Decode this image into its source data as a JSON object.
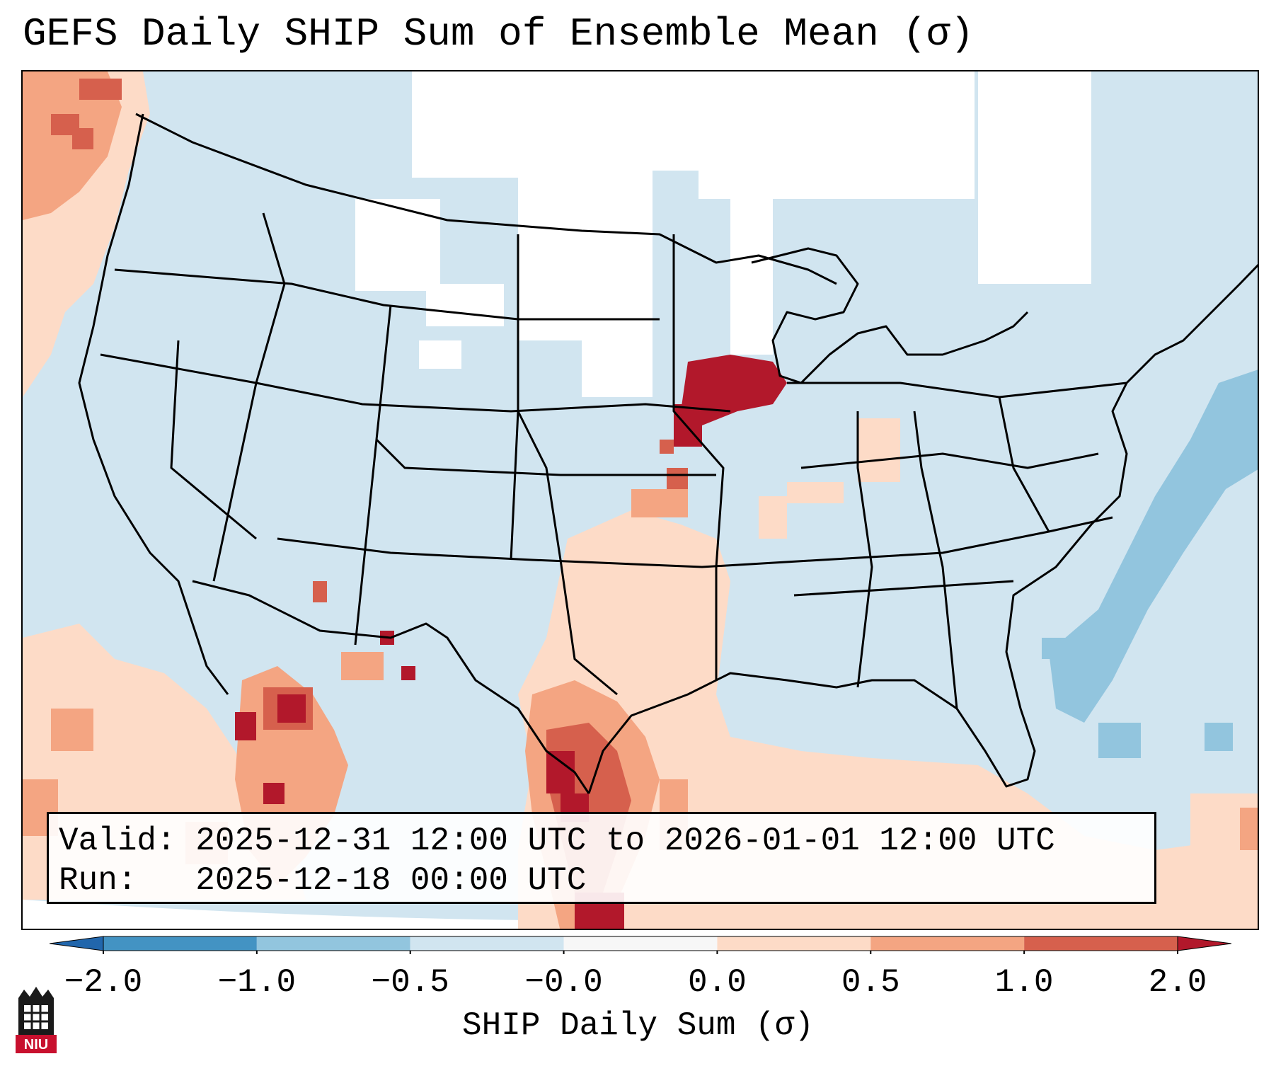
{
  "title": "GEFS Daily SHIP Sum of Ensemble Mean (σ)",
  "valid_label": "Valid:",
  "valid_value": "2025-12-31 12:00 UTC to 2026-01-01 12:00 UTC",
  "run_label": "Run:",
  "run_value": "2025-12-18 00:00 UTC",
  "logo_text": "NIU",
  "colorbar": {
    "label": "SHIP Daily Sum (σ)",
    "ticks": [
      "−2.0",
      "−1.0",
      "−0.5",
      "−0.0",
      "0.0",
      "0.5",
      "1.0",
      "2.0"
    ],
    "colors": [
      "#2166ac",
      "#4393c3",
      "#92c5de",
      "#d1e5f0",
      "#f7f7f7",
      "#fddbc7",
      "#f4a582",
      "#d6604d",
      "#b2182b"
    ],
    "extend_low_color": "#2166ac",
    "extend_high_color": "#b2182b"
  },
  "colors": {
    "neutral_fill": "#d1e5f0",
    "low_fill": "#92c5de",
    "positive_light": "#fddbc7",
    "positive_medium": "#f4a582",
    "positive_high": "#d6604d",
    "positive_max": "#b2182b",
    "boundary": "#000000"
  },
  "map": {
    "projection": "Lambert Conformal",
    "region": "Contiguous United States",
    "features": [
      "state-boundaries",
      "coastlines",
      "country-borders",
      "lakes"
    ],
    "shaded_variable": "SHIP daily sum anomaly (σ)"
  }
}
